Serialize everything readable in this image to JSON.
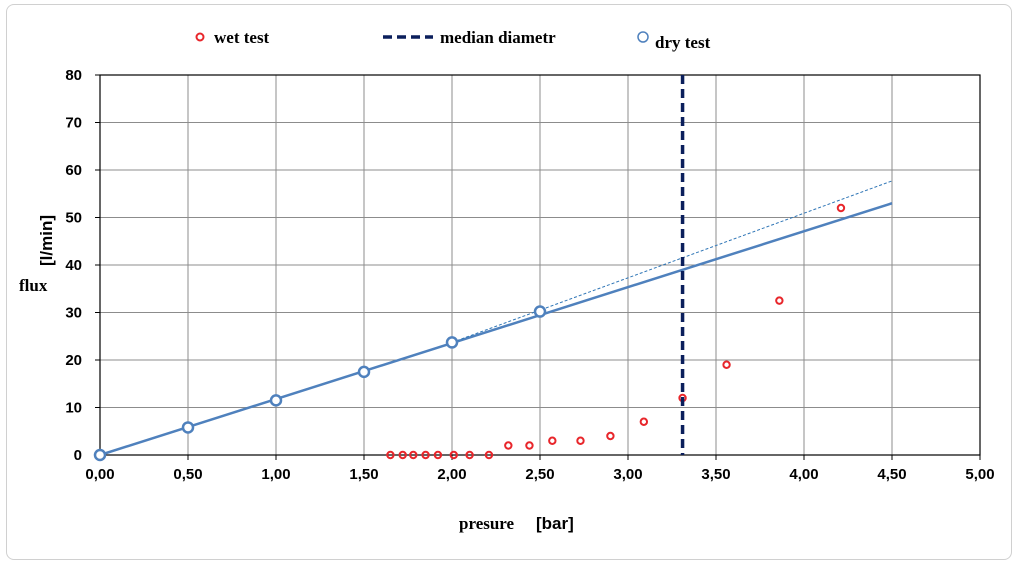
{
  "chart_data": {
    "type": "scatter",
    "xlabel": {
      "name": "presure",
      "unit": "[bar]"
    },
    "ylabel": {
      "name": "flux",
      "unit": "[l/min]"
    },
    "xlim": [
      0,
      5
    ],
    "ylim": [
      0,
      80
    ],
    "x_ticks": [
      "0,00",
      "0,50",
      "1,00",
      "1,50",
      "2,00",
      "2,50",
      "3,00",
      "3,50",
      "4,00",
      "4,50",
      "5,00"
    ],
    "y_ticks": [
      "0",
      "10",
      "20",
      "30",
      "40",
      "50",
      "60",
      "70",
      "80"
    ],
    "grid": true,
    "legend": {
      "placement": "top",
      "entries": [
        "wet test",
        "median diametr",
        "dry test"
      ]
    },
    "series": [
      {
        "name": "wet test",
        "kind": "scatter",
        "color": "#e8262b",
        "x": [
          1.65,
          1.72,
          1.78,
          1.85,
          1.92,
          2.01,
          2.1,
          2.21,
          2.32,
          2.44,
          2.57,
          2.73,
          2.9,
          3.09,
          3.31,
          3.56,
          3.86,
          4.21
        ],
        "y": [
          0,
          0,
          0,
          0,
          0,
          0,
          0,
          0,
          2,
          2,
          3,
          3,
          4,
          7,
          12,
          19,
          32.5,
          52
        ]
      },
      {
        "name": "median diametr",
        "kind": "vline",
        "color": "#0b1f5c",
        "x": 3.31
      },
      {
        "name": "dry test",
        "kind": "scatter-line",
        "color": "#4f81bd",
        "x": [
          0,
          0.5,
          1.0,
          1.5,
          2.0,
          2.5
        ],
        "y": [
          0,
          5.8,
          11.5,
          17.5,
          23.7,
          30.2
        ]
      }
    ],
    "dry_test_fit": {
      "color": "#4f81bd",
      "x": [
        0,
        4.5
      ],
      "y": [
        0,
        53
      ]
    },
    "dry_test_trend": {
      "color": "#2e75b6",
      "x": [
        2.0,
        4.5
      ],
      "y": [
        23.7,
        57.7
      ]
    }
  }
}
